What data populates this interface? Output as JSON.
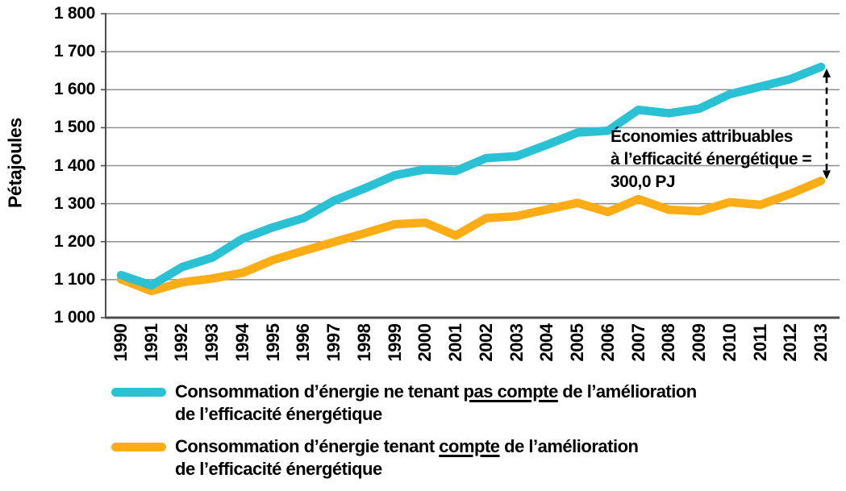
{
  "chart_data": {
    "type": "line",
    "title": "",
    "xlabel": "",
    "ylabel": "Pétajoules",
    "ylim": [
      1000,
      1800
    ],
    "ytick_step": 100,
    "ytick_labels": [
      "1 000",
      "1 100",
      "1 200",
      "1 300",
      "1 400",
      "1 500",
      "1 600",
      "1 700",
      "1 800"
    ],
    "grid": "horizontal",
    "legend_position": "bottom",
    "categories": [
      "1990",
      "1991",
      "1992",
      "1993",
      "1994",
      "1995",
      "1996",
      "1997",
      "1998",
      "1999",
      "2000",
      "2001",
      "2002",
      "2003",
      "2004",
      "2005",
      "2006",
      "2007",
      "2008",
      "2009",
      "2010",
      "2011",
      "2012",
      "2013"
    ],
    "series": [
      {
        "name": "Consommation d’énergie ne tenant pas compte de l’amélioration de l’efficacité énergétique",
        "color": "#2AC1D5",
        "values": [
          1112,
          1085,
          1133,
          1158,
          1208,
          1238,
          1262,
          1308,
          1340,
          1375,
          1390,
          1386,
          1420,
          1425,
          1455,
          1487,
          1492,
          1547,
          1538,
          1550,
          1588,
          1608,
          1628,
          1660
        ]
      },
      {
        "name": "Consommation d’énergie tenant compte de l’amélioration de l’efficacité énergétique",
        "color": "#FCAC15",
        "values": [
          1101,
          1070,
          1093,
          1103,
          1118,
          1152,
          1176,
          1199,
          1222,
          1246,
          1250,
          1216,
          1262,
          1267,
          1285,
          1302,
          1278,
          1312,
          1284,
          1280,
          1304,
          1297,
          1326,
          1360
        ]
      }
    ],
    "annotation": {
      "lines": [
        "Économies attribuables",
        "à l’efficacité énergétique =",
        "300,0 PJ"
      ],
      "arrow_at_category": "2013",
      "savings_value_pj": 300.0
    }
  },
  "legend": {
    "items": [
      {
        "pre": "Consommation d’énergie ne tenant ",
        "underline": "pas compte",
        "post": " de l’amélioration",
        "line2": "de l’efficacité énergétique"
      },
      {
        "pre": "Consommation d’énergie tenant ",
        "underline": "compte",
        "post": " de l’amélioration",
        "line2": "de l’efficacité énergétique"
      }
    ]
  },
  "colors": {
    "series_without_efficiency": "#2AC1D5",
    "series_with_efficiency": "#FCAC15",
    "gridline": "#8F8F8F",
    "axis": "#4D4D4D",
    "text": "#000000",
    "arrow": "#000000"
  }
}
